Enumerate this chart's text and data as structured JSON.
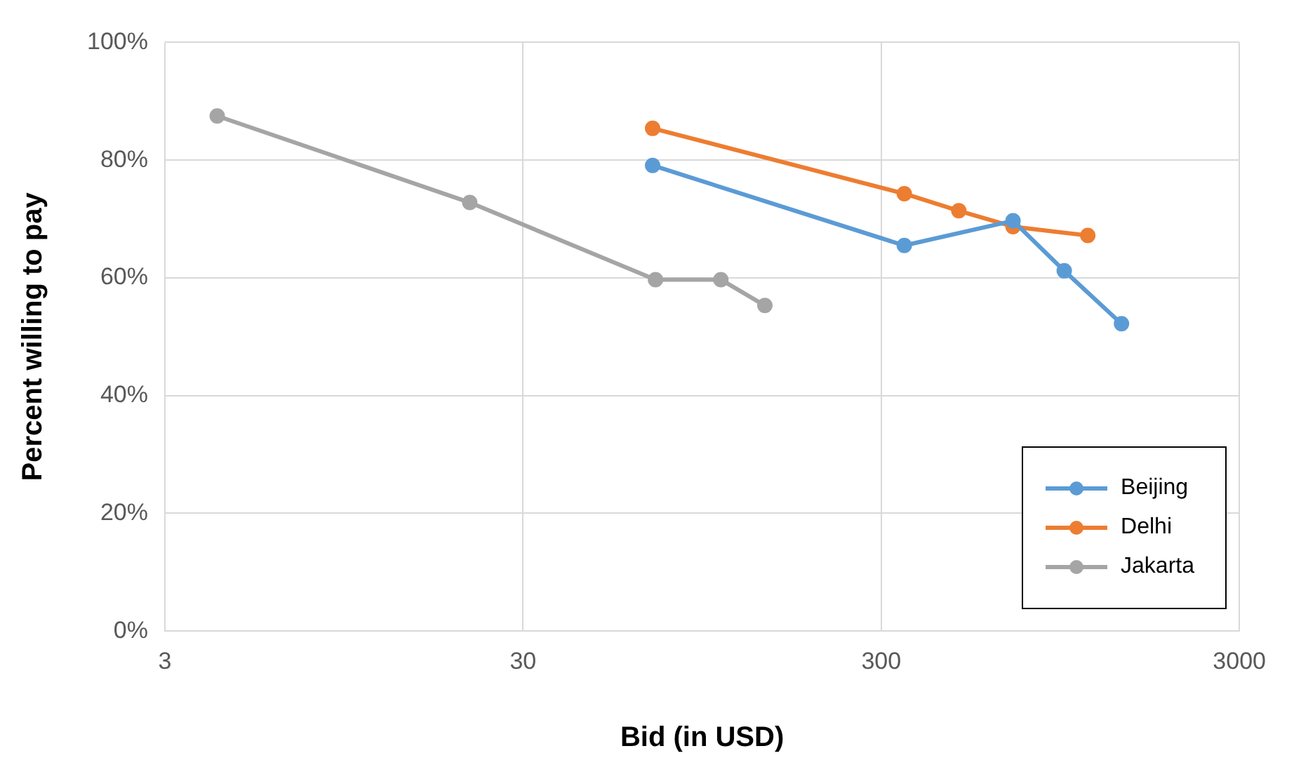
{
  "chart_data": {
    "type": "line",
    "xlabel": "Bid (in USD)",
    "ylabel": "Percent willing to pay",
    "log": "x",
    "xlim": [
      3,
      3000
    ],
    "xticks": [
      3,
      30,
      300,
      3000
    ],
    "ylim": [
      0,
      100
    ],
    "yticks": [
      {
        "value": 0,
        "label": "0%"
      },
      {
        "value": 20,
        "label": "20%"
      },
      {
        "value": 40,
        "label": "40%"
      },
      {
        "value": 60,
        "label": "60%"
      },
      {
        "value": 80,
        "label": "80%"
      },
      {
        "value": 100,
        "label": "100%"
      }
    ],
    "grid": true,
    "legend": "bottom right",
    "marker": "circle",
    "line_style": "solid",
    "series": [
      {
        "name": "Beijing",
        "color": "#5b9bd5",
        "x": [
          69,
          348,
          700,
          973,
          1406
        ],
        "values": [
          79.1,
          65.5,
          69.7,
          61.2,
          52.2
        ]
      },
      {
        "name": "Delhi",
        "color": "#ed7d31",
        "x": [
          69,
          348,
          494,
          700,
          1132
        ],
        "values": [
          85.4,
          74.3,
          71.4,
          68.7,
          67.2
        ]
      },
      {
        "name": "Jakarta",
        "color": "#a5a5a5",
        "x": [
          4.2,
          21.3,
          70.3,
          107,
          142
        ],
        "values": [
          87.5,
          72.8,
          59.7,
          59.7,
          55.3
        ]
      }
    ]
  }
}
